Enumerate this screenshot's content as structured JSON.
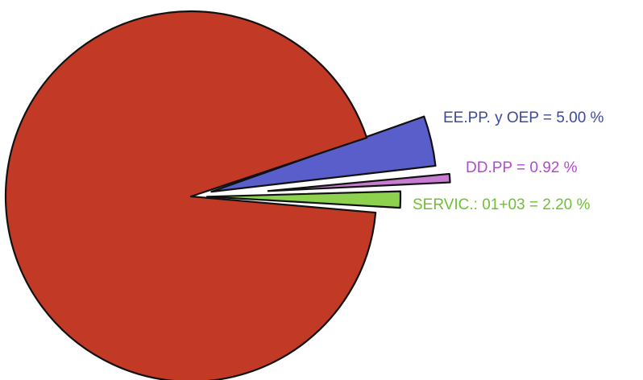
{
  "chart_data": {
    "type": "pie",
    "title": "",
    "slices": [
      {
        "label": "EE.PP. y OEP = 5.00 %",
        "value": 5.0,
        "color": "#5a5ecb",
        "exploded": true
      },
      {
        "label": "DD.PP = 0.92 %",
        "value": 0.92,
        "color": "#c77bd1",
        "exploded": true
      },
      {
        "label": "SERVIC.: 01+03 = 2.20 %",
        "value": 2.2,
        "color": "#8ed14e",
        "exploded": true
      },
      {
        "label": "",
        "value": 91.88,
        "color": "#c23a26",
        "exploded": false
      }
    ],
    "label_colors": [
      "#3b4a9c",
      "#b24ad0",
      "#6fbf34"
    ]
  }
}
